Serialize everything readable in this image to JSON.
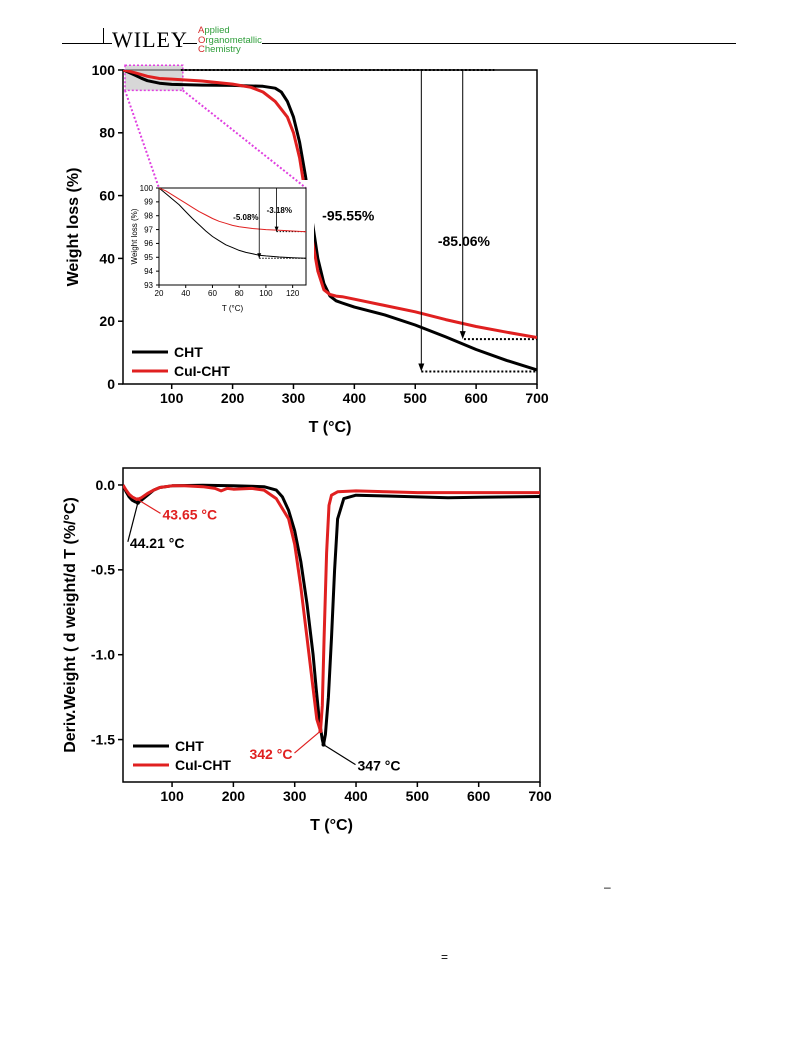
{
  "header": {
    "publisher": "WILEY",
    "journal_lines": [
      "Applied",
      "Organometallic",
      "Chemistry"
    ],
    "journal_initials": [
      "A",
      "O",
      "C"
    ],
    "journal_rests": [
      "pplied",
      "rganometallic",
      "hemistry"
    ]
  },
  "footer_marks": {
    "dash": "–",
    "equals": "="
  },
  "colors": {
    "CHT": "#000000",
    "CuI-CHT": "#e02020",
    "zoom": "#e040e0"
  },
  "chart_data": [
    {
      "type": "line",
      "xlabel": "T (°C)",
      "ylabel": "Weight loss (%)",
      "xlim": [
        20,
        700
      ],
      "ylim": [
        0,
        100
      ],
      "xticks": [
        100,
        200,
        300,
        400,
        500,
        600,
        700
      ],
      "yticks": [
        0,
        20,
        40,
        60,
        80,
        100
      ],
      "xtick_labels": [
        "100",
        "200",
        "300",
        "400",
        "500",
        "600",
        "700"
      ],
      "ytick_labels": [
        "0",
        "20",
        "40",
        "60",
        "80",
        "100"
      ],
      "legend_position": "bottom-left",
      "series": [
        {
          "name": "CHT",
          "x": [
            20,
            30,
            40,
            50,
            60,
            80,
            100,
            150,
            200,
            250,
            270,
            280,
            290,
            300,
            310,
            320,
            330,
            340,
            350,
            360,
            370,
            380,
            400,
            450,
            500,
            550,
            600,
            650,
            700
          ],
          "y": [
            100,
            99.2,
            98.3,
            97.4,
            96.6,
            95.8,
            95.4,
            95.2,
            95.1,
            94.8,
            94.2,
            93.0,
            90.0,
            85.0,
            77.0,
            66.0,
            53.0,
            40.0,
            32.0,
            28.0,
            26.5,
            25.8,
            24.5,
            22.0,
            18.8,
            15.0,
            11.0,
            7.5,
            4.5
          ]
        },
        {
          "name": "CuI-CHT",
          "x": [
            20,
            30,
            40,
            60,
            80,
            100,
            150,
            200,
            230,
            250,
            270,
            290,
            300,
            310,
            320,
            330,
            340,
            350,
            360,
            370,
            380,
            400,
            450,
            500,
            550,
            600,
            650,
            700
          ],
          "y": [
            100,
            99.6,
            99.1,
            98.0,
            97.3,
            97.1,
            96.5,
            95.5,
            94.5,
            93.0,
            90.0,
            85.0,
            80.0,
            72.0,
            60.0,
            47.0,
            36.0,
            30.0,
            28.5,
            28.0,
            27.8,
            27.0,
            25.0,
            23.0,
            20.5,
            18.3,
            16.5,
            14.8
          ]
        }
      ],
      "annotations": [
        {
          "text": "-95.55%",
          "x": 390,
          "y": 52
        },
        {
          "text": "-85.06%",
          "x": 580,
          "y": 44
        }
      ],
      "inset": {
        "xlabel": "T (°C)",
        "ylabel": "Weight loss (%)",
        "xlim": [
          20,
          130
        ],
        "ylim": [
          93,
          100
        ],
        "xticks": [
          20,
          40,
          60,
          80,
          100,
          120
        ],
        "yticks": [
          93,
          94,
          95,
          96,
          97,
          98,
          99,
          100
        ],
        "xtick_labels": [
          "20",
          "40",
          "60",
          "80",
          "100",
          "120"
        ],
        "ytick_labels": [
          "93",
          "94",
          "95",
          "96",
          "97",
          "98",
          "99",
          "100"
        ],
        "series": [
          {
            "name": "CHT",
            "x": [
              20,
              25,
              30,
              35,
              40,
              45,
              50,
              55,
              60,
              65,
              70,
              75,
              80,
              85,
              90,
              95,
              100,
              110,
              120,
              130
            ],
            "y": [
              100,
              99.6,
              99.2,
              98.8,
              98.3,
              97.8,
              97.35,
              96.9,
              96.5,
              96.2,
              95.9,
              95.7,
              95.5,
              95.35,
              95.25,
              95.15,
              95.1,
              95.02,
              94.97,
              94.93
            ]
          },
          {
            "name": "CuI-CHT",
            "x": [
              20,
              25,
              30,
              35,
              40,
              45,
              50,
              55,
              60,
              65,
              70,
              75,
              80,
              90,
              100,
              110,
              120,
              130
            ],
            "y": [
              100,
              99.8,
              99.5,
              99.2,
              98.9,
              98.6,
              98.3,
              98.05,
              97.8,
              97.6,
              97.45,
              97.3,
              97.2,
              97.08,
              97.0,
              96.95,
              96.9,
              96.85
            ]
          }
        ],
        "annotations": [
          {
            "text": "-5.08%",
            "x": 85,
            "y": 97.7
          },
          {
            "text": "-3.18%",
            "x": 110,
            "y": 98.2
          }
        ]
      }
    },
    {
      "type": "line",
      "xlabel": "T (°C)",
      "ylabel": "Deriv.Weight ( d weight/d T (%/°C)",
      "xlim": [
        20,
        700
      ],
      "ylim": [
        -1.75,
        0.1
      ],
      "xticks": [
        100,
        200,
        300,
        400,
        500,
        600,
        700
      ],
      "yticks": [
        0.0,
        -0.5,
        -1.0,
        -1.5
      ],
      "xtick_labels": [
        "100",
        "200",
        "300",
        "400",
        "500",
        "600",
        "700"
      ],
      "ytick_labels": [
        "0.0",
        "-0.5",
        "-1.0",
        "-1.5"
      ],
      "legend_position": "bottom-left",
      "series": [
        {
          "name": "CHT",
          "x": [
            20,
            25,
            30,
            35,
            40,
            44,
            50,
            60,
            70,
            80,
            100,
            150,
            200,
            250,
            270,
            280,
            290,
            300,
            310,
            320,
            330,
            335,
            340,
            345,
            347,
            350,
            355,
            360,
            365,
            370,
            380,
            400,
            450,
            500,
            550,
            600,
            650,
            700
          ],
          "y": [
            0.0,
            -0.04,
            -0.07,
            -0.09,
            -0.1,
            -0.105,
            -0.09,
            -0.06,
            -0.03,
            -0.015,
            -0.005,
            -0.002,
            -0.005,
            -0.01,
            -0.03,
            -0.07,
            -0.15,
            -0.27,
            -0.45,
            -0.7,
            -1.0,
            -1.2,
            -1.38,
            -1.5,
            -1.53,
            -1.47,
            -1.25,
            -0.9,
            -0.5,
            -0.2,
            -0.08,
            -0.06,
            -0.065,
            -0.07,
            -0.075,
            -0.072,
            -0.07,
            -0.068
          ]
        },
        {
          "name": "CuI-CHT",
          "x": [
            20,
            25,
            30,
            35,
            40,
            43.65,
            50,
            60,
            70,
            80,
            100,
            120,
            150,
            170,
            180,
            190,
            200,
            230,
            250,
            270,
            290,
            300,
            310,
            320,
            330,
            336,
            342,
            345,
            348,
            352,
            356,
            360,
            370,
            400,
            450,
            500,
            550,
            600,
            650,
            700
          ],
          "y": [
            0.0,
            -0.03,
            -0.055,
            -0.07,
            -0.08,
            -0.085,
            -0.075,
            -0.05,
            -0.03,
            -0.015,
            -0.005,
            -0.005,
            -0.01,
            -0.02,
            -0.035,
            -0.02,
            -0.025,
            -0.02,
            -0.03,
            -0.08,
            -0.2,
            -0.35,
            -0.6,
            -0.9,
            -1.2,
            -1.38,
            -1.45,
            -1.3,
            -0.9,
            -0.4,
            -0.12,
            -0.06,
            -0.04,
            -0.035,
            -0.04,
            -0.045,
            -0.045,
            -0.045,
            -0.045,
            -0.045
          ]
        }
      ],
      "annotations": [
        {
          "text": "43.65 °C",
          "series": "CuI-CHT",
          "x": 43.65,
          "y": -0.085
        },
        {
          "text": "44.21 °C",
          "series": "CHT",
          "x": 44.21,
          "y": -0.105
        },
        {
          "text": "342 °C",
          "series": "CuI-CHT",
          "x": 342,
          "y": -1.45
        },
        {
          "text": "347 °C",
          "series": "CHT",
          "x": 347,
          "y": -1.53
        }
      ]
    }
  ]
}
